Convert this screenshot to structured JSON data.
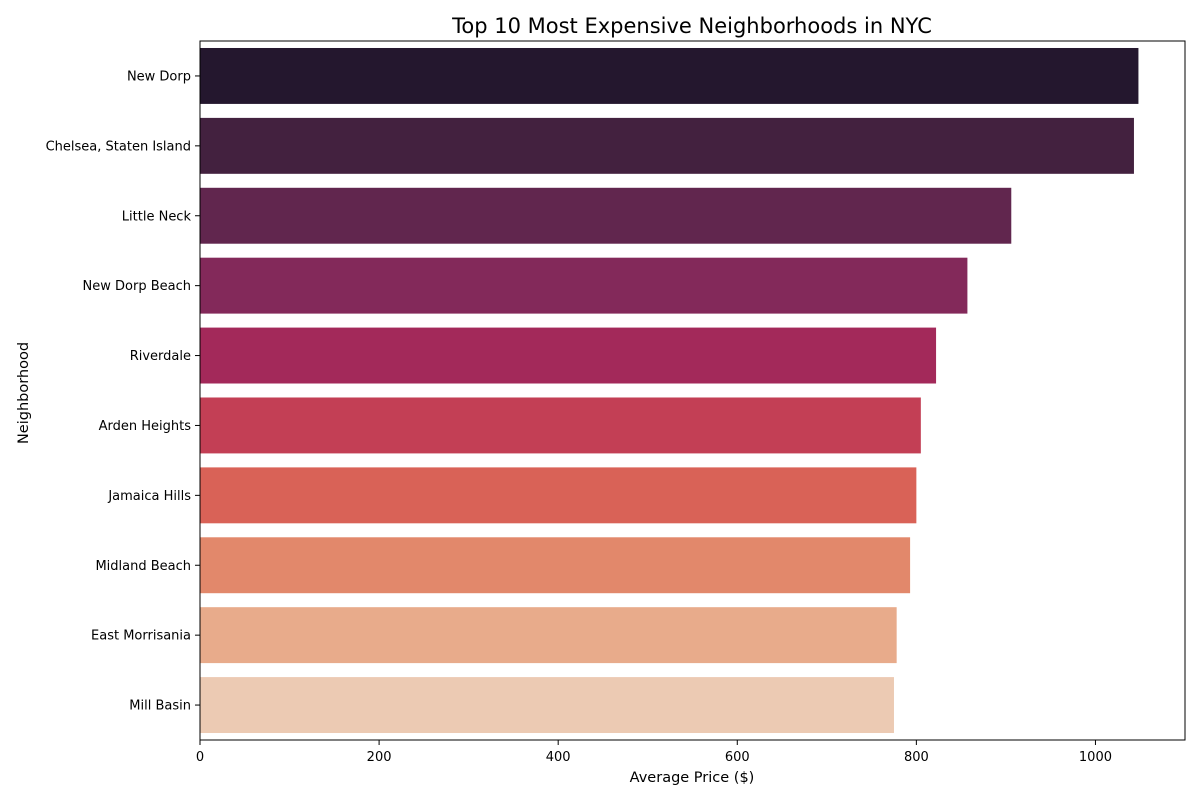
{
  "chart_data": {
    "type": "bar",
    "orientation": "horizontal",
    "title": "Top 10 Most Expensive Neighborhoods in NYC",
    "xlabel": "Average Price ($)",
    "ylabel": "Neighborhood",
    "xlim": [
      0,
      1100
    ],
    "xticks": [
      "0",
      "200",
      "400",
      "600",
      "800",
      "1000"
    ],
    "xtick_values": [
      0,
      200,
      400,
      600,
      800,
      1000
    ],
    "grid": false,
    "legend": "none",
    "categories": [
      "New Dorp",
      "Chelsea, Staten Island",
      "Little Neck",
      "New Dorp Beach",
      "Riverdale",
      "Arden Heights",
      "Jamaica Hills",
      "Midland Beach",
      "East Morrisania",
      "Mill Basin"
    ],
    "values": [
      1048,
      1043,
      906,
      857,
      822,
      805,
      800,
      793,
      778,
      775
    ],
    "colors": [
      "#24172e",
      "#43213f",
      "#61264e",
      "#83295a",
      "#a3295a",
      "#c33f55",
      "#d96257",
      "#e2886b",
      "#e8ab8b",
      "#eccab3"
    ]
  }
}
